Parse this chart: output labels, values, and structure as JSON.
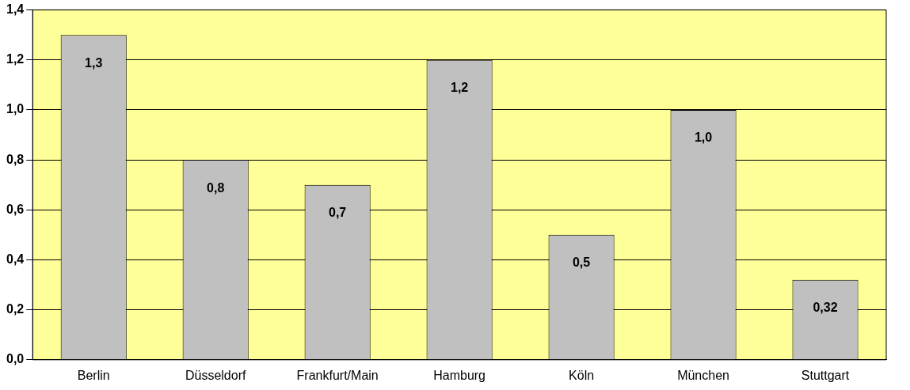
{
  "chart_data": {
    "type": "bar",
    "categories": [
      "Berlin",
      "Düsseldorf",
      "Frankfurt/Main",
      "Hamburg",
      "Köln",
      "München",
      "Stuttgart"
    ],
    "values": [
      1.3,
      0.8,
      0.7,
      1.2,
      0.5,
      1.0,
      0.32
    ],
    "value_labels": [
      "1,3",
      "0,8",
      "0,7",
      "1,2",
      "0,5",
      "1,0",
      "0,32"
    ],
    "color": "#c0c0c0",
    "ylim": [
      0,
      1.4
    ],
    "yticks": [
      {
        "value": 0,
        "label": "0,0"
      },
      {
        "value": 0.2,
        "label": "0,2"
      },
      {
        "value": 0.4,
        "label": "0,4"
      },
      {
        "value": 0.6,
        "label": "0,6"
      },
      {
        "value": 0.8,
        "label": "0,8"
      },
      {
        "value": 1.0,
        "label": "1,0"
      },
      {
        "value": 1.2,
        "label": "1,2"
      },
      {
        "value": 1.4,
        "label": "1,4"
      }
    ],
    "grid": "y",
    "legend": false
  }
}
